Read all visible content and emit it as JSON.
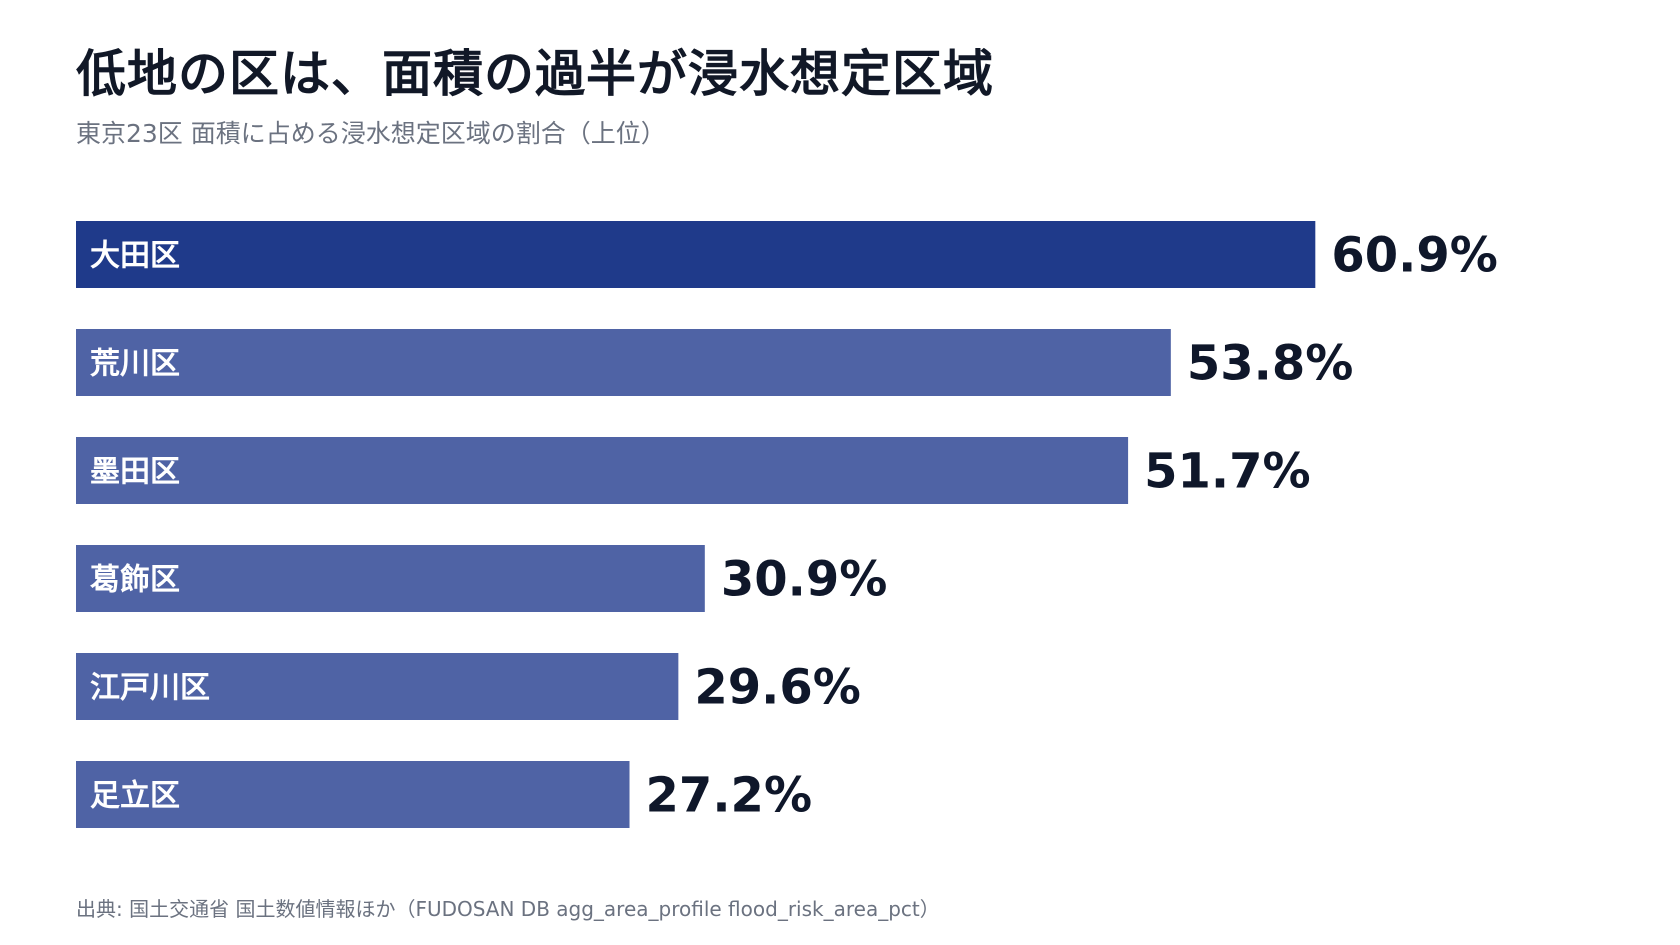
{
  "title": "低地の区は、面積の過半が浸水想定区域",
  "subtitle": "東京23区 面積に占める浸水想定区域の割合（上位）",
  "source": "出典: 国土交通省 国土数値情報ほか（FUDOSAN DB agg_area_profile flood_risk_area_pct）",
  "colors": {
    "highlight": "#1f3a8a",
    "bar": "#4f63a5",
    "value_text": "#0f172a"
  },
  "chart_data": {
    "type": "bar",
    "orientation": "horizontal",
    "title": "低地の区は、面積の過半が浸水想定区域",
    "subtitle": "東京23区 面積に占める浸水想定区域の割合（上位）",
    "categories": [
      "大田区",
      "荒川区",
      "墨田区",
      "葛飾区",
      "江戸川区",
      "足立区"
    ],
    "values": [
      60.9,
      53.8,
      51.7,
      30.9,
      29.6,
      27.2
    ],
    "value_labels": [
      "60.9%",
      "53.8%",
      "51.7%",
      "30.9%",
      "29.6%",
      "27.2%"
    ],
    "unit": "%",
    "xlim": [
      0,
      100
    ],
    "highlight_index": 0,
    "grid": false,
    "legend": "none"
  }
}
